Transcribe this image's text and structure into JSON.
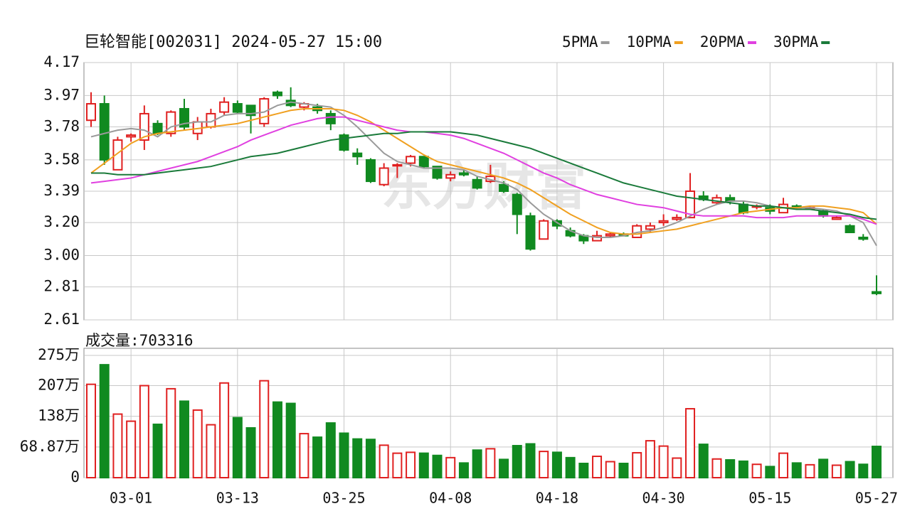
{
  "chart_data": [
    {
      "type": "candlestick",
      "title": "巨轮智能[002031] 2024-05-27 15:00",
      "watermark": "东方财富",
      "up_color": "#e02020",
      "down_color": "#108a20",
      "open": [
        3.82,
        3.92,
        3.52,
        3.72,
        3.7,
        3.8,
        3.74,
        3.89,
        3.74,
        3.78,
        3.87,
        3.92,
        3.91,
        3.8,
        3.99,
        3.94,
        3.9,
        3.9,
        3.86,
        3.73,
        3.62,
        3.58,
        3.43,
        3.55,
        3.56,
        3.6,
        3.54,
        3.47,
        3.5,
        3.46,
        3.45,
        3.43,
        3.37,
        3.24,
        3.1,
        3.21,
        3.15,
        3.12,
        3.09,
        3.12,
        3.13,
        3.11,
        3.16,
        3.2,
        3.22,
        3.23,
        3.36,
        3.32,
        3.35,
        3.31,
        3.3,
        3.29,
        3.26,
        3.3,
        3.29,
        3.27,
        3.22,
        3.18,
        3.11,
        2.78
      ],
      "high": [
        3.99,
        3.97,
        3.72,
        3.74,
        3.91,
        3.82,
        3.88,
        3.95,
        3.84,
        3.89,
        3.96,
        3.94,
        3.91,
        3.96,
        4.0,
        4.02,
        3.93,
        3.92,
        3.88,
        3.74,
        3.65,
        3.59,
        3.56,
        3.56,
        3.61,
        3.6,
        3.54,
        3.51,
        3.52,
        3.48,
        3.55,
        3.45,
        3.38,
        3.26,
        3.22,
        3.22,
        3.17,
        3.13,
        3.15,
        3.14,
        3.14,
        3.19,
        3.2,
        3.25,
        3.25,
        3.5,
        3.39,
        3.37,
        3.37,
        3.33,
        3.31,
        3.31,
        3.35,
        3.31,
        3.3,
        3.28,
        3.24,
        3.19,
        3.13,
        2.88
      ],
      "low": [
        3.78,
        3.55,
        3.52,
        3.69,
        3.64,
        3.73,
        3.72,
        3.76,
        3.7,
        3.77,
        3.85,
        3.86,
        3.74,
        3.78,
        3.95,
        3.9,
        3.88,
        3.86,
        3.76,
        3.63,
        3.55,
        3.44,
        3.42,
        3.47,
        3.54,
        3.53,
        3.46,
        3.45,
        3.48,
        3.4,
        3.44,
        3.38,
        3.13,
        3.03,
        3.1,
        3.16,
        3.11,
        3.07,
        3.09,
        3.11,
        3.12,
        3.11,
        3.14,
        3.18,
        3.21,
        3.23,
        3.33,
        3.31,
        3.31,
        3.25,
        3.28,
        3.25,
        3.26,
        3.28,
        3.28,
        3.23,
        3.22,
        3.14,
        3.09,
        2.76
      ],
      "close": [
        3.92,
        3.58,
        3.7,
        3.73,
        3.86,
        3.74,
        3.87,
        3.78,
        3.81,
        3.86,
        3.93,
        3.87,
        3.85,
        3.95,
        3.97,
        3.91,
        3.92,
        3.88,
        3.8,
        3.64,
        3.6,
        3.45,
        3.53,
        3.55,
        3.6,
        3.54,
        3.47,
        3.49,
        3.49,
        3.41,
        3.48,
        3.39,
        3.25,
        3.04,
        3.21,
        3.18,
        3.12,
        3.09,
        3.12,
        3.13,
        3.12,
        3.18,
        3.18,
        3.21,
        3.23,
        3.39,
        3.34,
        3.35,
        3.33,
        3.26,
        3.3,
        3.27,
        3.31,
        3.29,
        3.29,
        3.24,
        3.23,
        3.14,
        3.1,
        2.77
      ],
      "lines": [
        {
          "name": "5PMA",
          "color": "#9a9a9a",
          "values": [
            3.72,
            3.74,
            3.76,
            3.77,
            3.76,
            3.72,
            3.78,
            3.8,
            3.81,
            3.81,
            3.85,
            3.86,
            3.86,
            3.87,
            3.91,
            3.93,
            3.92,
            3.91,
            3.9,
            3.85,
            3.78,
            3.7,
            3.62,
            3.57,
            3.55,
            3.53,
            3.53,
            3.53,
            3.52,
            3.48,
            3.46,
            3.44,
            3.4,
            3.32,
            3.25,
            3.2,
            3.15,
            3.12,
            3.11,
            3.11,
            3.12,
            3.14,
            3.15,
            3.17,
            3.2,
            3.24,
            3.28,
            3.31,
            3.33,
            3.33,
            3.32,
            3.3,
            3.29,
            3.29,
            3.29,
            3.28,
            3.27,
            3.24,
            3.2,
            3.06
          ]
        },
        {
          "name": "10PMA",
          "color": "#f0a020",
          "values": [
            3.5,
            3.56,
            3.62,
            3.68,
            3.72,
            3.74,
            3.75,
            3.76,
            3.77,
            3.78,
            3.79,
            3.8,
            3.82,
            3.84,
            3.86,
            3.88,
            3.89,
            3.89,
            3.89,
            3.88,
            3.85,
            3.81,
            3.76,
            3.71,
            3.66,
            3.61,
            3.57,
            3.55,
            3.53,
            3.51,
            3.49,
            3.47,
            3.44,
            3.4,
            3.35,
            3.3,
            3.25,
            3.21,
            3.17,
            3.14,
            3.13,
            3.13,
            3.14,
            3.15,
            3.16,
            3.18,
            3.2,
            3.22,
            3.24,
            3.26,
            3.27,
            3.28,
            3.29,
            3.29,
            3.3,
            3.3,
            3.29,
            3.28,
            3.26,
            3.19
          ]
        },
        {
          "name": "20PMA",
          "color": "#e040e0",
          "values": [
            3.44,
            3.45,
            3.46,
            3.47,
            3.49,
            3.51,
            3.53,
            3.55,
            3.57,
            3.6,
            3.63,
            3.66,
            3.7,
            3.73,
            3.76,
            3.79,
            3.81,
            3.83,
            3.84,
            3.84,
            3.82,
            3.8,
            3.78,
            3.76,
            3.75,
            3.75,
            3.74,
            3.73,
            3.71,
            3.68,
            3.65,
            3.62,
            3.58,
            3.54,
            3.5,
            3.47,
            3.43,
            3.4,
            3.37,
            3.35,
            3.33,
            3.31,
            3.3,
            3.29,
            3.27,
            3.25,
            3.24,
            3.24,
            3.24,
            3.24,
            3.23,
            3.23,
            3.23,
            3.24,
            3.24,
            3.24,
            3.24,
            3.24,
            3.22,
            3.19
          ]
        },
        {
          "name": "30PMA",
          "color": "#1a7a3a",
          "values": [
            3.5,
            3.5,
            3.49,
            3.49,
            3.49,
            3.5,
            3.51,
            3.52,
            3.53,
            3.54,
            3.56,
            3.58,
            3.6,
            3.61,
            3.62,
            3.64,
            3.66,
            3.68,
            3.7,
            3.71,
            3.72,
            3.73,
            3.74,
            3.74,
            3.75,
            3.75,
            3.75,
            3.75,
            3.74,
            3.73,
            3.71,
            3.69,
            3.67,
            3.65,
            3.62,
            3.59,
            3.56,
            3.53,
            3.5,
            3.47,
            3.44,
            3.42,
            3.4,
            3.38,
            3.36,
            3.35,
            3.34,
            3.33,
            3.32,
            3.31,
            3.3,
            3.3,
            3.29,
            3.28,
            3.28,
            3.27,
            3.26,
            3.25,
            3.23,
            3.22
          ]
        }
      ],
      "ylim": [
        2.61,
        4.17
      ],
      "yticks": [
        {
          "value": 4.17,
          "label": "4.17"
        },
        {
          "value": 3.97,
          "label": "3.97"
        },
        {
          "value": 3.78,
          "label": "3.78"
        },
        {
          "value": 3.58,
          "label": "3.58"
        },
        {
          "value": 3.39,
          "label": "3.39"
        },
        {
          "value": 3.2,
          "label": "3.20"
        },
        {
          "value": 3.0,
          "label": "3.00"
        },
        {
          "value": 2.81,
          "label": "2.81"
        },
        {
          "value": 2.61,
          "label": "2.61"
        }
      ],
      "grid": true
    },
    {
      "type": "bar",
      "title": "成交量:703316",
      "categories": [
        null,
        null,
        null,
        "03-01",
        null,
        null,
        null,
        null,
        null,
        null,
        null,
        "03-13",
        null,
        null,
        null,
        null,
        null,
        null,
        null,
        "03-25",
        null,
        null,
        null,
        null,
        null,
        null,
        null,
        "04-08",
        null,
        null,
        null,
        null,
        null,
        null,
        null,
        "04-18",
        null,
        null,
        null,
        null,
        null,
        null,
        null,
        "04-30",
        null,
        null,
        null,
        null,
        null,
        null,
        null,
        "05-15",
        null,
        null,
        null,
        null,
        null,
        null,
        null,
        "05-27"
      ],
      "values": [
        210,
        254,
        143,
        127,
        207,
        120,
        200,
        172,
        152,
        119,
        213,
        135,
        112,
        218,
        170,
        167,
        99,
        91,
        123,
        100,
        87,
        86,
        73,
        55,
        57,
        55,
        50,
        45,
        33,
        62,
        65,
        41,
        72,
        76,
        59,
        57,
        45,
        32,
        48,
        36,
        32,
        56,
        83,
        71,
        44,
        155,
        75,
        42,
        40,
        37,
        30,
        25,
        55,
        33,
        29,
        41,
        28,
        36,
        30,
        70.3316
      ],
      "ylim": [
        0,
        275
      ],
      "yticks": [
        {
          "value": 275,
          "label": "275万"
        },
        {
          "value": 207,
          "label": "207万"
        },
        {
          "value": 138,
          "label": "138万"
        },
        {
          "value": 68.87,
          "label": "68.87万"
        },
        0
      ],
      "grid": true
    }
  ]
}
